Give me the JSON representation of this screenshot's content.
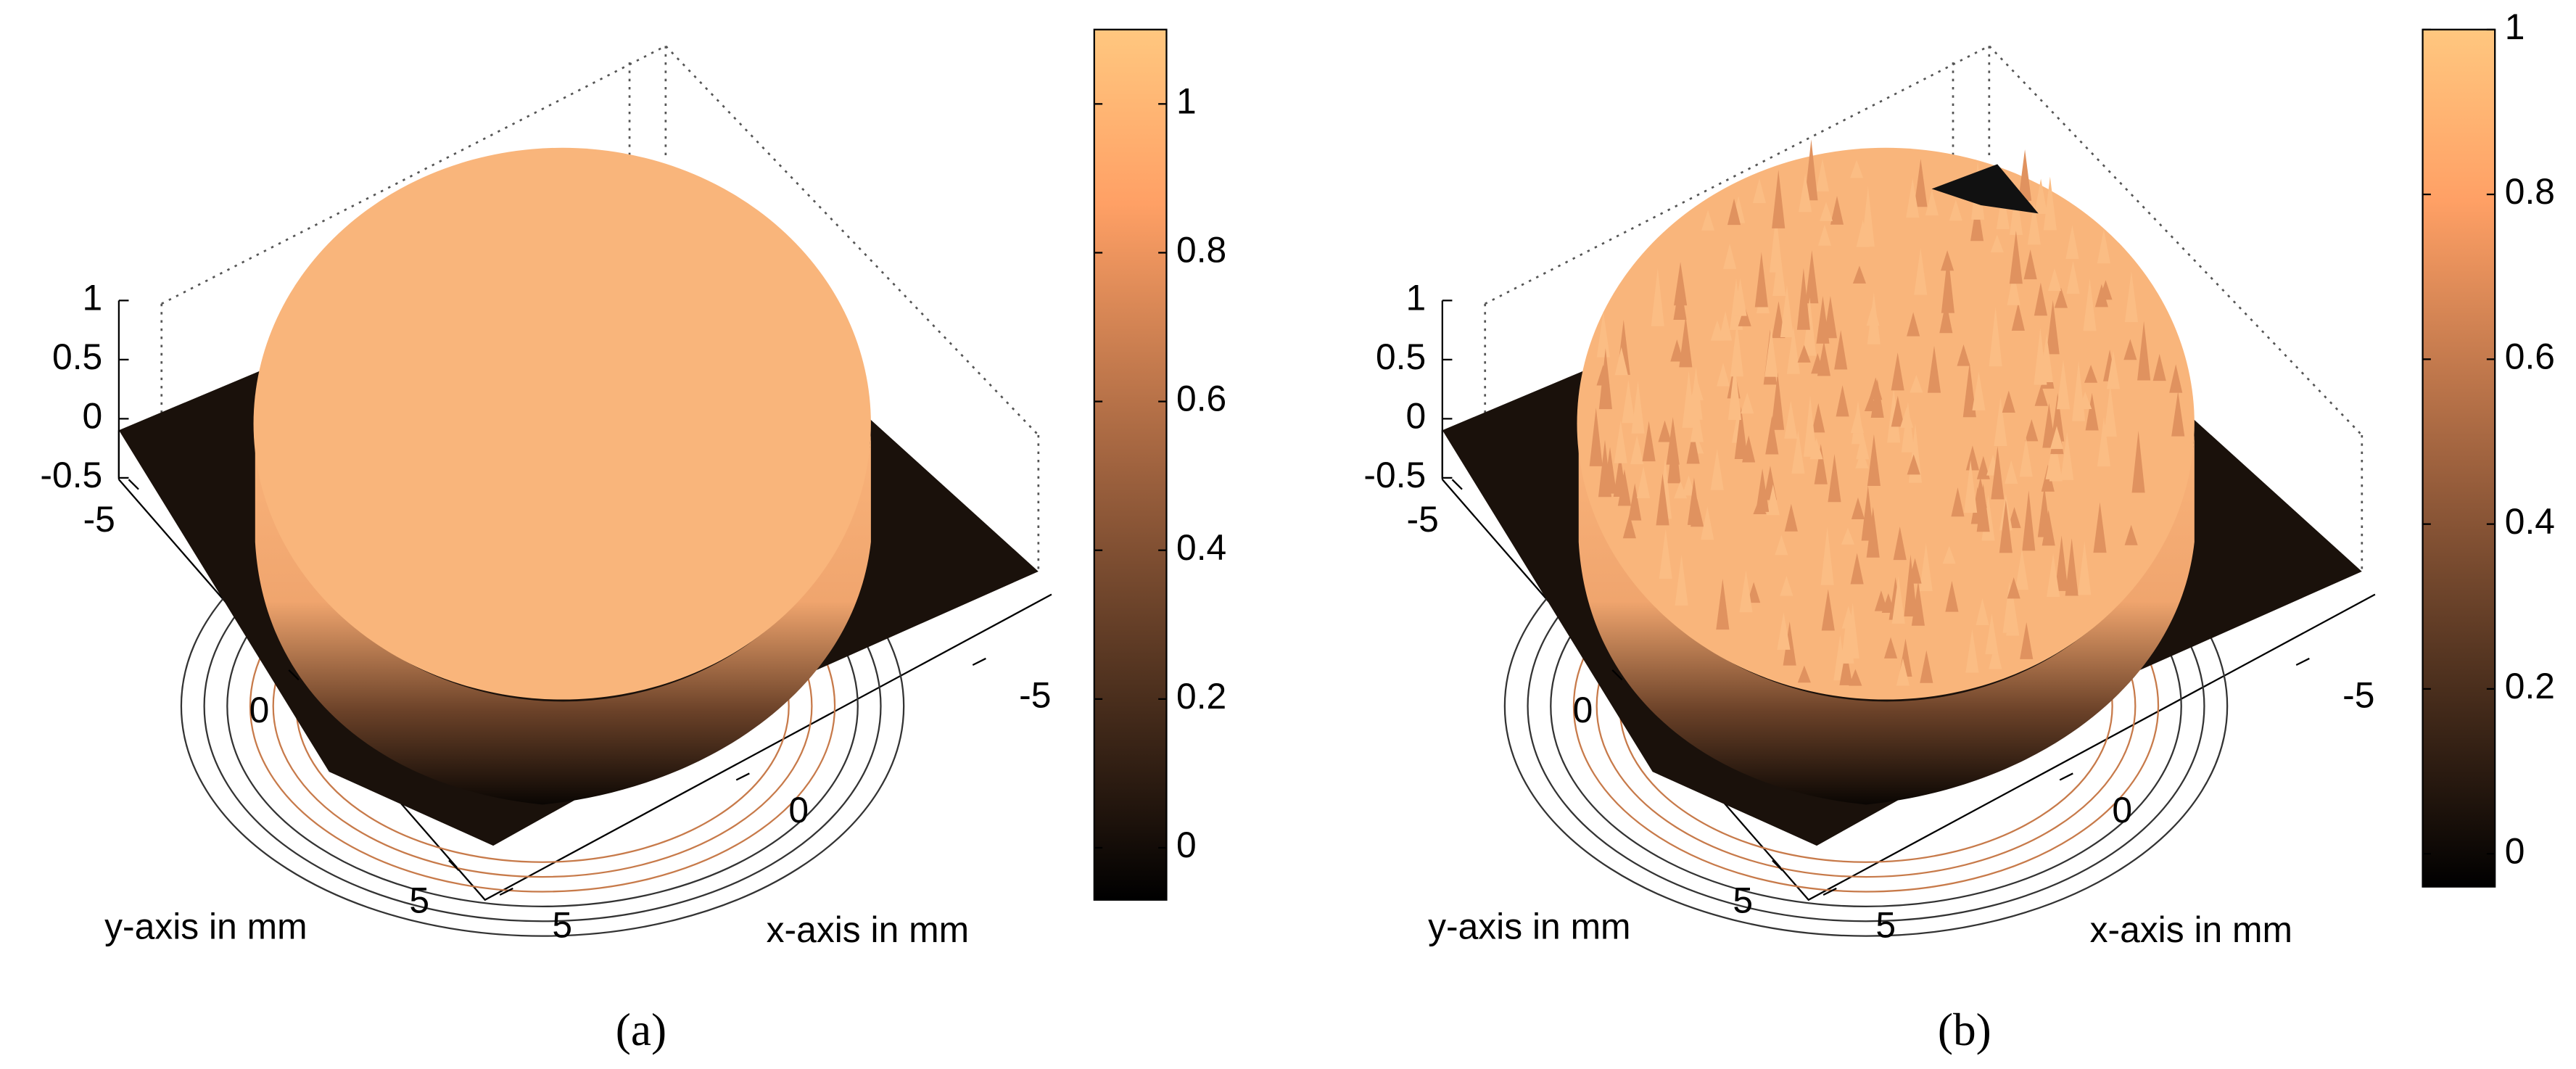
{
  "chart_data": [
    {
      "type": "surface3d",
      "caption": "(a)",
      "x_label": "x-axis in mm",
      "y_label": "y-axis in mm",
      "xticks": [
        -5,
        0,
        5
      ],
      "yticks": [
        -5,
        0,
        5
      ],
      "zticks": [
        -0.5,
        0,
        0.5,
        1
      ],
      "colorbar": {
        "clim": [
          -0.07,
          1.1
        ],
        "ticks": [
          0,
          0.2,
          0.4,
          0.6,
          0.8,
          1
        ]
      }
    },
    {
      "type": "surface3d",
      "caption": "(b)",
      "x_label": "x-axis in mm",
      "y_label": "y-axis in mm",
      "xticks": [
        -5,
        0,
        5
      ],
      "yticks": [
        -5,
        0,
        5
      ],
      "zticks": [
        -0.5,
        0,
        0.5,
        1
      ],
      "colorbar": {
        "clim": [
          -0.04,
          1.0
        ],
        "ticks": [
          0,
          0.2,
          0.4,
          0.6,
          0.8,
          1
        ]
      },
      "spiky": true
    }
  ]
}
